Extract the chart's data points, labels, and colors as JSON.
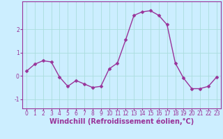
{
  "x": [
    0,
    1,
    2,
    3,
    4,
    5,
    6,
    7,
    8,
    9,
    10,
    11,
    12,
    13,
    14,
    15,
    16,
    17,
    18,
    19,
    20,
    21,
    22,
    23
  ],
  "y": [
    0.2,
    0.5,
    0.65,
    0.6,
    -0.05,
    -0.45,
    -0.2,
    -0.35,
    -0.5,
    -0.45,
    0.3,
    0.55,
    1.55,
    2.6,
    2.75,
    2.8,
    2.6,
    2.2,
    0.55,
    -0.1,
    -0.55,
    -0.55,
    -0.45,
    -0.05
  ],
  "line_color": "#993399",
  "marker_color": "#993399",
  "bg_color": "#cceeff",
  "grid_color": "#aadddd",
  "xlabel": "Windchill (Refroidissement éolien,°C)",
  "xlim": [
    -0.5,
    23.5
  ],
  "ylim": [
    -1.4,
    3.2
  ],
  "yticks": [
    -1,
    0,
    1,
    2
  ],
  "xticks": [
    0,
    1,
    2,
    3,
    4,
    5,
    6,
    7,
    8,
    9,
    10,
    11,
    12,
    13,
    14,
    15,
    16,
    17,
    18,
    19,
    20,
    21,
    22,
    23
  ],
  "tick_fontsize": 5.5,
  "xlabel_fontsize": 7.0,
  "marker_size": 2.5,
  "line_width": 1.0
}
